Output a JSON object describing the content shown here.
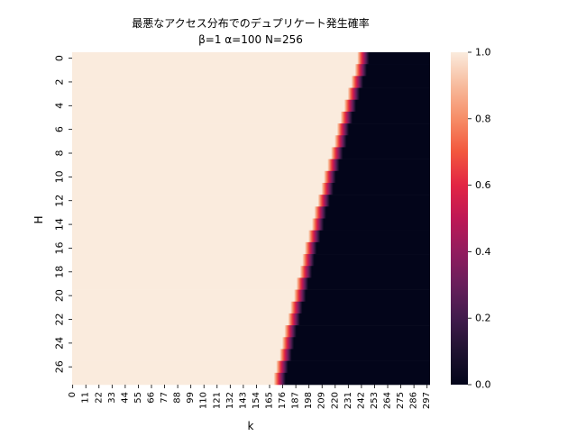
{
  "chart_data": {
    "type": "heatmap",
    "title": "最悪なアクセス分布でのデュプリケート発生確率",
    "subtitle": "β=1  α=100  N=256",
    "xlabel": "k",
    "ylabel": "H",
    "x_tick_labels": [
      "0",
      "11",
      "22",
      "33",
      "44",
      "55",
      "66",
      "77",
      "88",
      "99",
      "110",
      "121",
      "132",
      "143",
      "154",
      "165",
      "176",
      "187",
      "198",
      "209",
      "220",
      "231",
      "242",
      "253",
      "264",
      "275",
      "286",
      "297"
    ],
    "y_tick_labels": [
      "0",
      "2",
      "4",
      "6",
      "8",
      "10",
      "12",
      "14",
      "16",
      "18",
      "20",
      "22",
      "24",
      "26"
    ],
    "k_values": {
      "min": 0,
      "max": 299,
      "step": 1
    },
    "H_values": {
      "min": 0,
      "max": 27,
      "step": 1
    },
    "transition_center_k": [
      244,
      242,
      239,
      236,
      233,
      230,
      227,
      225,
      222,
      219,
      216,
      214,
      211,
      208,
      206,
      203,
      200,
      198,
      196,
      193,
      191,
      188,
      186,
      183,
      181,
      179,
      176,
      174
    ],
    "transition_width_k": 5,
    "value_range": [
      0.0,
      1.0
    ],
    "colorbar_ticks": [
      "0.0",
      "0.2",
      "0.4",
      "0.6",
      "0.8",
      "1.0"
    ],
    "colormap": "rocket",
    "grid": false,
    "legend": "colorbar-right"
  }
}
